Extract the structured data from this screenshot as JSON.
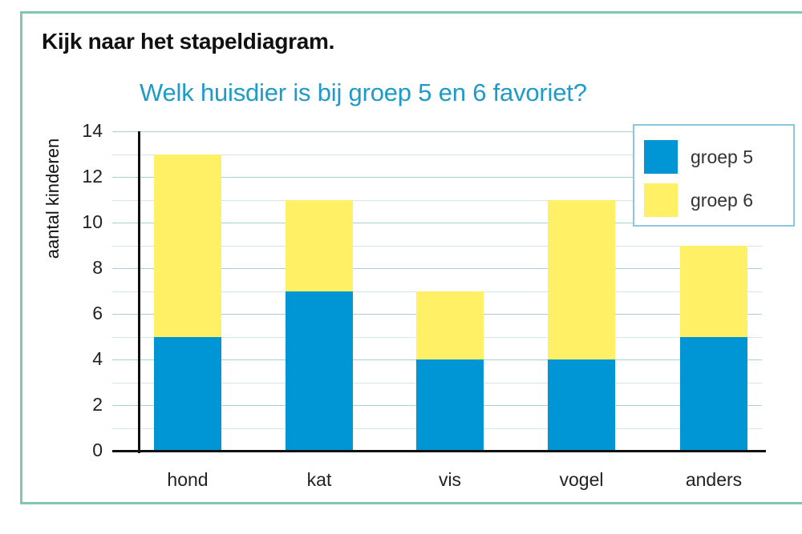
{
  "heading": "Kijk naar het stapeldiagram.",
  "colors": {
    "groep5": "#0096d6",
    "groep6": "#fff066",
    "title": "#1e9bc9",
    "frame": "#7fc9ad"
  },
  "chart_data": {
    "type": "bar",
    "stacked": true,
    "title": "Welk huisdier is bij groep 5 en 6 favoriet?",
    "xlabel": "",
    "ylabel": "aantal kinderen",
    "categories": [
      "hond",
      "kat",
      "vis",
      "vogel",
      "anders"
    ],
    "series": [
      {
        "name": "groep 5",
        "values": [
          5,
          7,
          4,
          4,
          5
        ]
      },
      {
        "name": "groep 6",
        "values": [
          8,
          4,
          3,
          7,
          4
        ]
      }
    ],
    "totals": [
      13,
      11,
      7,
      11,
      9
    ],
    "ylim": [
      0,
      14
    ],
    "yticks": [
      0,
      2,
      4,
      6,
      8,
      10,
      12,
      14
    ],
    "grid": true,
    "legend_position": "top-right"
  },
  "legend": {
    "items": [
      {
        "label": "groep 5"
      },
      {
        "label": "groep 6"
      }
    ]
  }
}
